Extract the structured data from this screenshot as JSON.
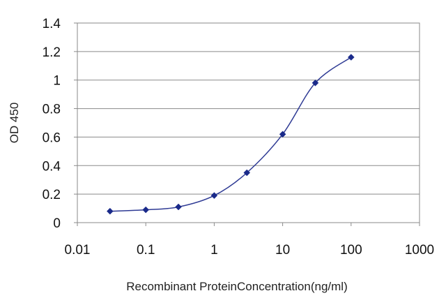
{
  "chart_data": {
    "type": "line",
    "title": "",
    "xlabel": "Recombinant ProteinConcentration(ng/ml)",
    "ylabel": "OD 450",
    "x_scale": "log",
    "xlim": [
      0.01,
      1000
    ],
    "ylim": [
      0,
      1.4
    ],
    "x_ticks": [
      "0.01",
      "0.1",
      "1",
      "10",
      "100",
      "1000"
    ],
    "y_ticks": [
      "0",
      "0.2",
      "0.4",
      "0.6",
      "0.8",
      "1",
      "1.2",
      "1.4"
    ],
    "grid": "horizontal",
    "legend": "none",
    "series": [
      {
        "color": "#2e3a94",
        "marker": "diamond",
        "x": [
          0.03,
          0.1,
          0.3,
          1,
          3,
          10,
          30,
          100
        ],
        "y": [
          0.08,
          0.09,
          0.11,
          0.19,
          0.35,
          0.62,
          0.98,
          1.16
        ]
      }
    ]
  }
}
